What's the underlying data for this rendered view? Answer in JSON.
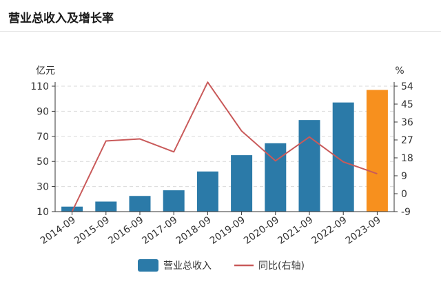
{
  "header": {
    "title": "营业总收入及增长率"
  },
  "chart_data": {
    "type": "bar",
    "title": "",
    "left_unit": "亿元",
    "right_unit": "%",
    "categories": [
      "2014-09",
      "2015-09",
      "2016-09",
      "2017-09",
      "2018-09",
      "2019-09",
      "2020-09",
      "2021-09",
      "2022-09",
      "2023-09"
    ],
    "series": [
      {
        "name": "营业总收入",
        "type": "bar",
        "axis": "left",
        "values": [
          14,
          18,
          22.5,
          27,
          42,
          55,
          64.5,
          83,
          97,
          107
        ],
        "color": "#2b7aa8",
        "highlight_color": "#f7901e",
        "highlight_index": 9
      },
      {
        "name": "同比(右轴)",
        "type": "line",
        "axis": "right",
        "values": [
          -9,
          26.5,
          27.5,
          21,
          56,
          31.5,
          16.5,
          28.5,
          16,
          10
        ],
        "color": "#c95a5a"
      }
    ],
    "y_left": {
      "min": 10,
      "max": 110,
      "ticks": [
        10,
        30,
        50,
        70,
        90,
        110
      ]
    },
    "y_right": {
      "min": -9,
      "max": 54,
      "ticks": [
        -9,
        0,
        9,
        18,
        27,
        36,
        45,
        54
      ]
    },
    "grid": true,
    "legend": "bottom"
  }
}
